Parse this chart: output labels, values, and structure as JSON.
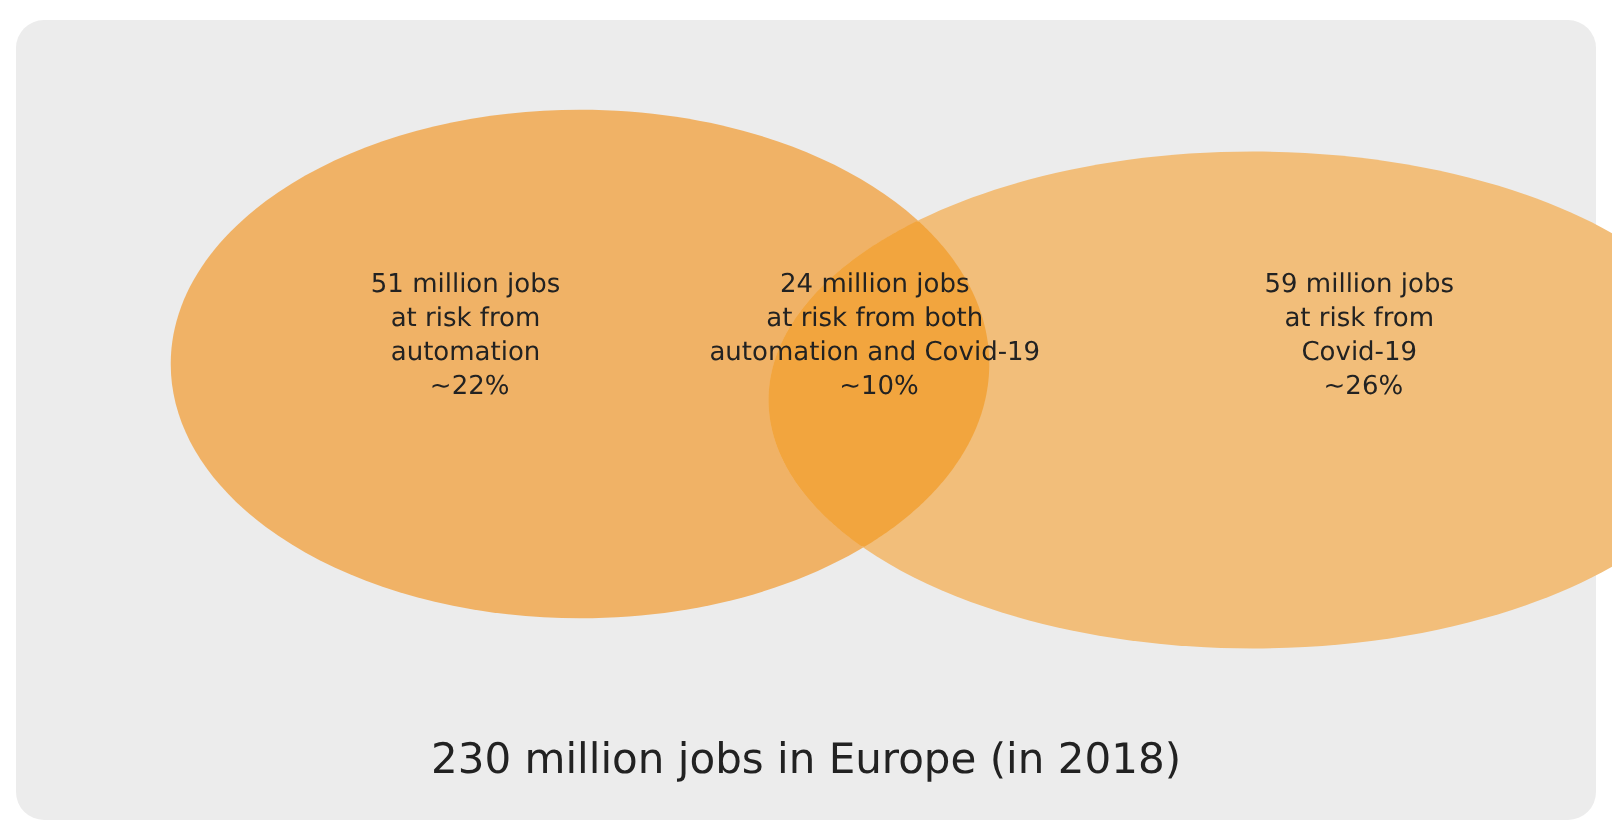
{
  "chart_data": {
    "type": "other",
    "title": "230 million jobs in Europe (in 2018)",
    "categories": [
      "at risk from automation",
      "at risk from both automation and Covid-19",
      "at risk from Covid-19"
    ],
    "values": [
      51,
      24,
      59
    ],
    "value_labels": [
      "51 million jobs",
      "24 million jobs",
      "59 million jobs"
    ],
    "annotations": [
      "~22%",
      "~10%",
      "~26%"
    ],
    "colors": [
      "#f0b266",
      "#f2a53e",
      "#f2be7a"
    ]
  }
}
